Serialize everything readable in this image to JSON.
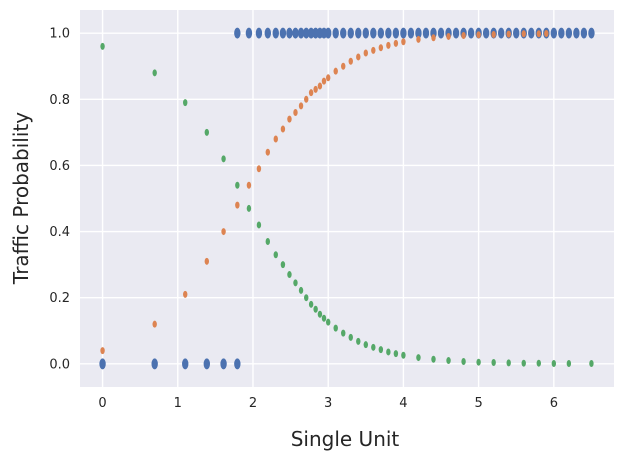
{
  "chart_data": {
    "type": "scatter",
    "xlabel": "Single Unit",
    "ylabel": "Traffic Probability",
    "xlim": [
      -0.3,
      6.8
    ],
    "ylim": [
      -0.07,
      1.07
    ],
    "xticks": [
      "0",
      "1",
      "2",
      "3",
      "4",
      "5",
      "6"
    ],
    "yticks": [
      "0.0",
      "0.2",
      "0.4",
      "0.6",
      "0.8",
      "1.0"
    ],
    "grid": true,
    "background": "#eaeaf2",
    "series": [
      {
        "color": "#4c72b0",
        "points": [
          [
            0.0,
            0.0
          ],
          [
            0.693,
            0.0
          ],
          [
            1.099,
            0.0
          ],
          [
            1.386,
            0.0
          ],
          [
            1.609,
            0.0
          ],
          [
            1.792,
            0.0
          ],
          [
            1.792,
            1.0
          ],
          [
            1.946,
            1.0
          ],
          [
            2.079,
            1.0
          ],
          [
            2.197,
            1.0
          ],
          [
            2.303,
            1.0
          ],
          [
            2.398,
            1.0
          ],
          [
            2.485,
            1.0
          ],
          [
            2.565,
            1.0
          ],
          [
            2.639,
            1.0
          ],
          [
            2.708,
            1.0
          ],
          [
            2.773,
            1.0
          ],
          [
            2.833,
            1.0
          ],
          [
            2.89,
            1.0
          ],
          [
            2.944,
            1.0
          ],
          [
            3.0,
            1.0
          ],
          [
            3.1,
            1.0
          ],
          [
            3.2,
            1.0
          ],
          [
            3.3,
            1.0
          ],
          [
            3.4,
            1.0
          ],
          [
            3.5,
            1.0
          ],
          [
            3.6,
            1.0
          ],
          [
            3.7,
            1.0
          ],
          [
            3.8,
            1.0
          ],
          [
            3.9,
            1.0
          ],
          [
            4.0,
            1.0
          ],
          [
            4.1,
            1.0
          ],
          [
            4.2,
            1.0
          ],
          [
            4.3,
            1.0
          ],
          [
            4.4,
            1.0
          ],
          [
            4.5,
            1.0
          ],
          [
            4.6,
            1.0
          ],
          [
            4.7,
            1.0
          ],
          [
            4.8,
            1.0
          ],
          [
            4.9,
            1.0
          ],
          [
            5.0,
            1.0
          ],
          [
            5.1,
            1.0
          ],
          [
            5.2,
            1.0
          ],
          [
            5.3,
            1.0
          ],
          [
            5.4,
            1.0
          ],
          [
            5.5,
            1.0
          ],
          [
            5.6,
            1.0
          ],
          [
            5.7,
            1.0
          ],
          [
            5.8,
            1.0
          ],
          [
            5.9,
            1.0
          ],
          [
            6.0,
            1.0
          ],
          [
            6.1,
            1.0
          ],
          [
            6.2,
            1.0
          ],
          [
            6.3,
            1.0
          ],
          [
            6.4,
            1.0
          ],
          [
            6.5,
            1.0
          ]
        ]
      },
      {
        "color": "#dd8452",
        "points": [
          [
            0.0,
            0.04
          ],
          [
            0.693,
            0.12
          ],
          [
            1.099,
            0.21
          ],
          [
            1.386,
            0.31
          ],
          [
            1.609,
            0.4
          ],
          [
            1.792,
            0.48
          ],
          [
            1.946,
            0.54
          ],
          [
            2.079,
            0.59
          ],
          [
            2.197,
            0.64
          ],
          [
            2.303,
            0.68
          ],
          [
            2.398,
            0.71
          ],
          [
            2.485,
            0.74
          ],
          [
            2.565,
            0.76
          ],
          [
            2.639,
            0.78
          ],
          [
            2.708,
            0.8
          ],
          [
            2.773,
            0.82
          ],
          [
            2.833,
            0.83
          ],
          [
            2.89,
            0.84
          ],
          [
            2.944,
            0.855
          ],
          [
            3.0,
            0.865
          ],
          [
            3.1,
            0.885
          ],
          [
            3.2,
            0.9
          ],
          [
            3.3,
            0.915
          ],
          [
            3.4,
            0.928
          ],
          [
            3.5,
            0.94
          ],
          [
            3.6,
            0.948
          ],
          [
            3.7,
            0.956
          ],
          [
            3.8,
            0.963
          ],
          [
            3.9,
            0.969
          ],
          [
            4.0,
            0.974
          ],
          [
            4.2,
            0.981
          ],
          [
            4.4,
            0.986
          ],
          [
            4.6,
            0.99
          ],
          [
            4.8,
            0.993
          ],
          [
            5.0,
            0.995
          ],
          [
            5.2,
            0.996
          ],
          [
            5.4,
            0.997
          ],
          [
            5.6,
            0.998
          ],
          [
            5.8,
            0.998
          ],
          [
            5.9,
            0.999
          ]
        ]
      },
      {
        "color": "#55a868",
        "points": [
          [
            0.0,
            0.96
          ],
          [
            0.693,
            0.88
          ],
          [
            1.099,
            0.79
          ],
          [
            1.386,
            0.7
          ],
          [
            1.609,
            0.62
          ],
          [
            1.792,
            0.54
          ],
          [
            1.946,
            0.47
          ],
          [
            2.079,
            0.42
          ],
          [
            2.197,
            0.37
          ],
          [
            2.303,
            0.33
          ],
          [
            2.398,
            0.3
          ],
          [
            2.485,
            0.27
          ],
          [
            2.565,
            0.245
          ],
          [
            2.639,
            0.222
          ],
          [
            2.708,
            0.2
          ],
          [
            2.773,
            0.18
          ],
          [
            2.833,
            0.165
          ],
          [
            2.89,
            0.15
          ],
          [
            2.944,
            0.138
          ],
          [
            3.0,
            0.126
          ],
          [
            3.1,
            0.108
          ],
          [
            3.2,
            0.093
          ],
          [
            3.3,
            0.08
          ],
          [
            3.4,
            0.068
          ],
          [
            3.5,
            0.058
          ],
          [
            3.6,
            0.05
          ],
          [
            3.7,
            0.043
          ],
          [
            3.8,
            0.036
          ],
          [
            3.9,
            0.031
          ],
          [
            4.0,
            0.026
          ],
          [
            4.2,
            0.019
          ],
          [
            4.4,
            0.014
          ],
          [
            4.6,
            0.01
          ],
          [
            4.8,
            0.007
          ],
          [
            5.0,
            0.005
          ],
          [
            5.2,
            0.004
          ],
          [
            5.4,
            0.003
          ],
          [
            5.6,
            0.002
          ],
          [
            5.8,
            0.002
          ],
          [
            6.0,
            0.001
          ],
          [
            6.2,
            0.001
          ],
          [
            6.5,
            0.001
          ]
        ]
      }
    ]
  }
}
